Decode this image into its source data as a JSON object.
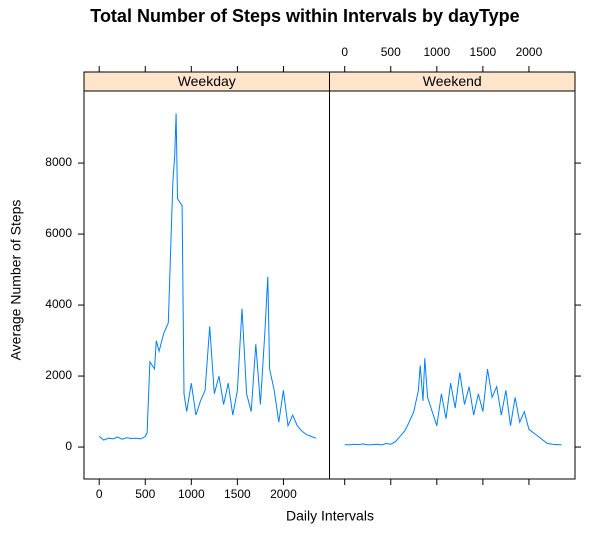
{
  "chart_data": {
    "type": "line",
    "title": "Total Number of Steps within Intervals by dayType",
    "xlabel": "Daily Intervals",
    "ylabel": "Average Number of Steps",
    "xlim": [
      -165,
      2500
    ],
    "ylim": [
      -900,
      10030
    ],
    "xticks": [
      0,
      500,
      1000,
      1500,
      2000
    ],
    "yticks": [
      0,
      2000,
      4000,
      6000,
      8000
    ],
    "series": [
      {
        "name": "Weekday",
        "color": "#0080ff",
        "x": [
          0,
          50,
          100,
          150,
          200,
          250,
          300,
          350,
          400,
          450,
          500,
          520,
          550,
          600,
          620,
          650,
          700,
          750,
          800,
          820,
          835,
          850,
          900,
          920,
          950,
          1000,
          1050,
          1100,
          1150,
          1200,
          1250,
          1300,
          1350,
          1400,
          1450,
          1500,
          1550,
          1600,
          1650,
          1700,
          1750,
          1800,
          1830,
          1850,
          1900,
          1950,
          2000,
          2050,
          2100,
          2150,
          2200,
          2250,
          2300,
          2355
        ],
        "values": [
          300,
          200,
          250,
          230,
          280,
          220,
          260,
          240,
          250,
          230,
          300,
          400,
          2400,
          2200,
          3000,
          2700,
          3200,
          3500,
          7500,
          8200,
          9400,
          7000,
          6800,
          1500,
          1000,
          1800,
          900,
          1300,
          1600,
          3400,
          1500,
          2000,
          1200,
          1800,
          900,
          1600,
          3900,
          1500,
          1000,
          2900,
          1200,
          3300,
          4800,
          2200,
          1600,
          700,
          1600,
          600,
          900,
          600,
          450,
          350,
          300,
          250
        ]
      },
      {
        "name": "Weekend",
        "color": "#0080ff",
        "x": [
          0,
          50,
          100,
          150,
          200,
          250,
          300,
          350,
          400,
          450,
          500,
          550,
          600,
          650,
          700,
          750,
          800,
          820,
          850,
          870,
          900,
          950,
          1000,
          1050,
          1100,
          1150,
          1200,
          1250,
          1300,
          1350,
          1400,
          1450,
          1500,
          1550,
          1600,
          1650,
          1700,
          1750,
          1800,
          1850,
          1900,
          1950,
          2000,
          2050,
          2100,
          2150,
          2200,
          2250,
          2355
        ],
        "values": [
          70,
          60,
          80,
          70,
          90,
          60,
          70,
          80,
          60,
          100,
          80,
          150,
          300,
          450,
          700,
          1000,
          1600,
          2300,
          1300,
          2500,
          1400,
          1000,
          600,
          1500,
          800,
          1800,
          1100,
          2100,
          1200,
          1700,
          900,
          1500,
          1000,
          2200,
          1400,
          1700,
          900,
          1600,
          600,
          1400,
          700,
          1000,
          500,
          400,
          300,
          200,
          100,
          80,
          60
        ]
      }
    ]
  }
}
